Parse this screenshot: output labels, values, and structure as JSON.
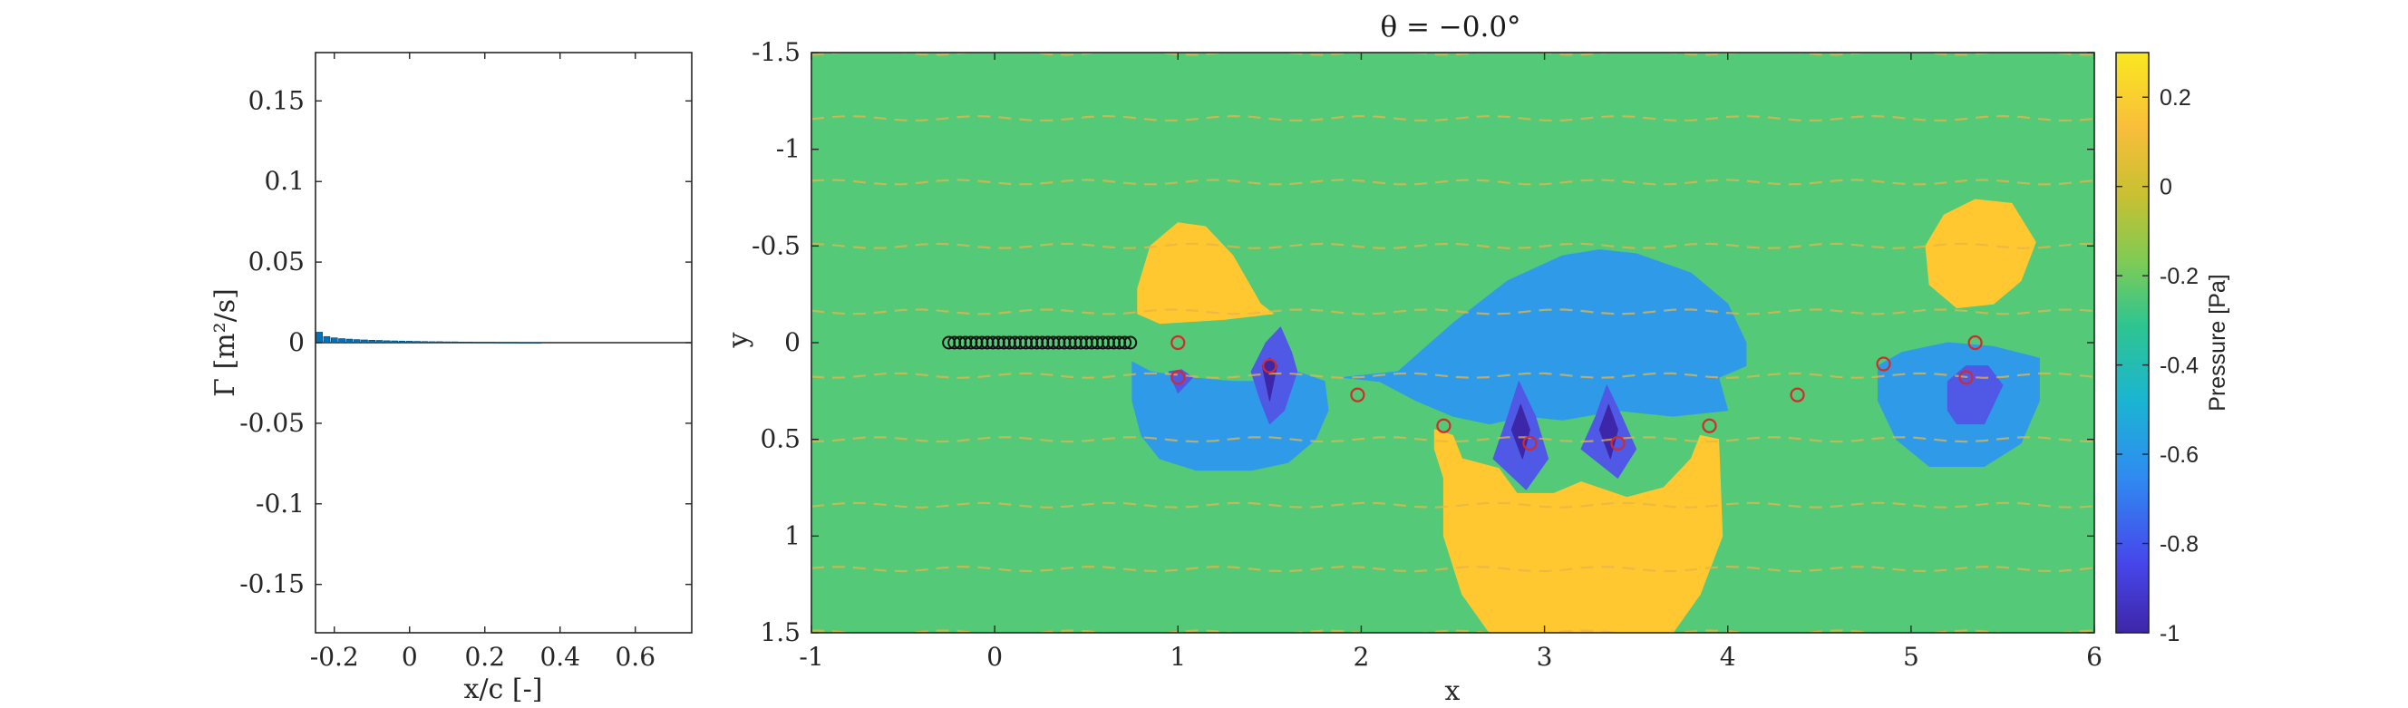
{
  "chart_data": [
    {
      "type": "bar",
      "panel": "circulation",
      "xlabel": "x/c [-]",
      "ylabel": "Γ [m²/s]",
      "xlim": [
        -0.25,
        0.75
      ],
      "ylim": [
        -0.18,
        0.18
      ],
      "xticks": [
        "-0.2",
        "0",
        "0.2",
        "0.4",
        "0.6"
      ],
      "xtick_values": [
        -0.2,
        0,
        0.2,
        0.4,
        0.6
      ],
      "yticks": [
        "0.15",
        "0.1",
        "0.05",
        "0",
        "-0.05",
        "-0.1",
        "-0.15"
      ],
      "ytick_values": [
        0.15,
        0.1,
        0.05,
        0,
        -0.05,
        -0.1,
        -0.15
      ],
      "color": "#0072BD",
      "x": [
        -0.24,
        -0.22,
        -0.2,
        -0.18,
        -0.16,
        -0.14,
        -0.12,
        -0.1,
        -0.08,
        -0.06,
        -0.04,
        -0.02,
        0.0,
        0.02,
        0.04,
        0.06,
        0.08,
        0.1,
        0.12,
        0.14,
        0.16,
        0.18,
        0.2,
        0.22,
        0.24,
        0.26,
        0.28,
        0.3,
        0.32,
        0.34
      ],
      "values": [
        0.0065,
        0.0038,
        0.003,
        0.0025,
        0.0022,
        0.0019,
        0.0017,
        0.0015,
        0.0014,
        0.0012,
        0.0011,
        0.001,
        0.0009,
        0.0008,
        0.0007,
        0.0006,
        0.0006,
        0.0005,
        0.0005,
        0.0004,
        0.0004,
        0.0003,
        0.0003,
        0.0003,
        0.0002,
        0.0002,
        0.0002,
        0.0001,
        0.0001,
        0.0001
      ]
    },
    {
      "type": "heatmap",
      "panel": "pressure-field",
      "title": "θ = −0.0°",
      "xlabel": "x",
      "ylabel": "y",
      "xlim": [
        -1,
        6
      ],
      "ylim": [
        -1.5,
        1.5
      ],
      "y_reversed": true,
      "xticks": [
        "-1",
        "0",
        "1",
        "2",
        "3",
        "4",
        "5",
        "6"
      ],
      "xtick_values": [
        -1,
        0,
        1,
        2,
        3,
        4,
        5,
        6
      ],
      "yticks": [
        "-1.5",
        "-1",
        "-0.5",
        "0",
        "0.5",
        "1",
        "1.5"
      ],
      "ytick_values": [
        -1.5,
        -1,
        -0.5,
        0,
        0.5,
        1,
        1.5
      ],
      "background_color": "#54C977",
      "regions": [
        {
          "level": 0.2,
          "color": "#FFC831",
          "points": [
            [
              0.78,
              -0.28
            ],
            [
              0.85,
              -0.5
            ],
            [
              1.0,
              -0.62
            ],
            [
              1.15,
              -0.6
            ],
            [
              1.3,
              -0.45
            ],
            [
              1.45,
              -0.2
            ],
            [
              1.52,
              -0.15
            ],
            [
              1.25,
              -0.12
            ],
            [
              0.9,
              -0.1
            ],
            [
              0.78,
              -0.15
            ]
          ]
        },
        {
          "level": -0.6,
          "color": "#2F9BE8",
          "points": [
            [
              0.75,
              0.1
            ],
            [
              0.85,
              0.15
            ],
            [
              1.05,
              0.18
            ],
            [
              1.3,
              0.2
            ],
            [
              1.5,
              0.2
            ],
            [
              1.65,
              0.15
            ],
            [
              1.8,
              0.2
            ],
            [
              1.82,
              0.35
            ],
            [
              1.75,
              0.5
            ],
            [
              1.6,
              0.62
            ],
            [
              1.4,
              0.66
            ],
            [
              1.1,
              0.66
            ],
            [
              0.9,
              0.6
            ],
            [
              0.8,
              0.48
            ],
            [
              0.75,
              0.3
            ]
          ]
        },
        {
          "level": -0.6,
          "color": "#2F9BE8",
          "points": [
            [
              1.9,
              0.18
            ],
            [
              2.2,
              0.15
            ],
            [
              2.5,
              -0.1
            ],
            [
              2.8,
              -0.32
            ],
            [
              3.1,
              -0.45
            ],
            [
              3.3,
              -0.48
            ],
            [
              3.5,
              -0.46
            ],
            [
              3.8,
              -0.36
            ],
            [
              4.0,
              -0.2
            ],
            [
              4.1,
              0.0
            ],
            [
              4.1,
              0.12
            ],
            [
              3.95,
              0.18
            ],
            [
              4.0,
              0.35
            ],
            [
              3.7,
              0.38
            ],
            [
              3.4,
              0.35
            ],
            [
              3.1,
              0.4
            ],
            [
              2.9,
              0.38
            ],
            [
              2.7,
              0.42
            ],
            [
              2.5,
              0.38
            ],
            [
              2.3,
              0.3
            ],
            [
              2.1,
              0.2
            ]
          ]
        },
        {
          "level": 0.2,
          "color": "#FFC831",
          "points": [
            [
              2.4,
              0.45
            ],
            [
              2.5,
              0.48
            ],
            [
              2.55,
              0.6
            ],
            [
              2.75,
              0.65
            ],
            [
              2.85,
              0.78
            ],
            [
              3.05,
              0.78
            ],
            [
              3.2,
              0.72
            ],
            [
              3.45,
              0.8
            ],
            [
              3.65,
              0.75
            ],
            [
              3.8,
              0.6
            ],
            [
              3.85,
              0.48
            ],
            [
              3.95,
              0.5
            ],
            [
              3.97,
              1.0
            ],
            [
              3.85,
              1.3
            ],
            [
              3.7,
              1.5
            ],
            [
              2.7,
              1.5
            ],
            [
              2.55,
              1.3
            ],
            [
              2.45,
              1.0
            ],
            [
              2.45,
              0.7
            ],
            [
              2.4,
              0.55
            ]
          ]
        },
        {
          "level": -0.8,
          "color": "#4F59E6",
          "points": [
            [
              2.72,
              0.6
            ],
            [
              2.8,
              0.38
            ],
            [
              2.86,
              0.2
            ],
            [
              2.95,
              0.38
            ],
            [
              3.02,
              0.6
            ],
            [
              2.9,
              0.76
            ]
          ]
        },
        {
          "level": -0.8,
          "color": "#4F59E6",
          "points": [
            [
              3.2,
              0.55
            ],
            [
              3.28,
              0.38
            ],
            [
              3.34,
              0.22
            ],
            [
              3.42,
              0.38
            ],
            [
              3.5,
              0.55
            ],
            [
              3.4,
              0.7
            ]
          ]
        },
        {
          "level": -0.8,
          "color": "#4F59E6",
          "points": [
            [
              1.4,
              0.15
            ],
            [
              1.48,
              0.0
            ],
            [
              1.56,
              -0.08
            ],
            [
              1.62,
              0.05
            ],
            [
              1.65,
              0.15
            ],
            [
              1.58,
              0.35
            ],
            [
              1.5,
              0.42
            ],
            [
              1.45,
              0.3
            ]
          ]
        },
        {
          "level": -0.8,
          "color": "#4F59E6",
          "points": [
            [
              0.95,
              0.15
            ],
            [
              1.02,
              0.14
            ],
            [
              1.08,
              0.18
            ],
            [
              1.0,
              0.26
            ]
          ]
        },
        {
          "level": 0.2,
          "color": "#FFC831",
          "points": [
            [
              5.08,
              -0.5
            ],
            [
              5.18,
              -0.66
            ],
            [
              5.35,
              -0.74
            ],
            [
              5.55,
              -0.72
            ],
            [
              5.68,
              -0.52
            ],
            [
              5.6,
              -0.32
            ],
            [
              5.45,
              -0.2
            ],
            [
              5.25,
              -0.18
            ],
            [
              5.1,
              -0.3
            ]
          ]
        },
        {
          "level": -0.6,
          "color": "#2F9BE8",
          "points": [
            [
              4.82,
              0.12
            ],
            [
              4.95,
              0.05
            ],
            [
              5.2,
              0.0
            ],
            [
              5.45,
              0.02
            ],
            [
              5.7,
              0.08
            ],
            [
              5.7,
              0.3
            ],
            [
              5.6,
              0.52
            ],
            [
              5.4,
              0.64
            ],
            [
              5.1,
              0.64
            ],
            [
              4.92,
              0.5
            ],
            [
              4.82,
              0.3
            ]
          ]
        },
        {
          "level": -0.8,
          "color": "#4F59E6",
          "points": [
            [
              5.2,
              0.2
            ],
            [
              5.3,
              0.12
            ],
            [
              5.42,
              0.12
            ],
            [
              5.5,
              0.22
            ],
            [
              5.45,
              0.32
            ],
            [
              5.4,
              0.42
            ],
            [
              5.25,
              0.42
            ],
            [
              5.2,
              0.35
            ]
          ]
        },
        {
          "level": -1.0,
          "color": "#3E26A8",
          "points": [
            [
              1.46,
              0.12
            ],
            [
              1.5,
              0.08
            ],
            [
              1.54,
              0.12
            ],
            [
              1.5,
              0.3
            ]
          ]
        },
        {
          "level": -1.0,
          "color": "#3E26A8",
          "points": [
            [
              2.82,
              0.45
            ],
            [
              2.87,
              0.32
            ],
            [
              2.92,
              0.45
            ],
            [
              2.88,
              0.6
            ]
          ]
        },
        {
          "level": -1.0,
          "color": "#3E26A8",
          "points": [
            [
              3.3,
              0.45
            ],
            [
              3.35,
              0.32
            ],
            [
              3.4,
              0.45
            ],
            [
              3.36,
              0.6
            ]
          ]
        }
      ],
      "plate_points_x": [
        -0.25,
        -0.22,
        -0.19,
        -0.16,
        -0.13,
        -0.1,
        -0.07,
        -0.04,
        -0.01,
        0.02,
        0.05,
        0.08,
        0.11,
        0.14,
        0.17,
        0.2,
        0.23,
        0.26,
        0.29,
        0.32,
        0.35,
        0.38,
        0.41,
        0.44,
        0.47,
        0.5,
        0.53,
        0.56,
        0.59,
        0.62,
        0.65,
        0.68,
        0.71,
        0.74
      ],
      "plate_points_y": 0,
      "vortices": [
        [
          1.0,
          0.0
        ],
        [
          1.98,
          0.27
        ],
        [
          2.45,
          0.43
        ],
        [
          2.92,
          0.52
        ],
        [
          3.4,
          0.52
        ],
        [
          3.9,
          0.43
        ],
        [
          4.38,
          0.27
        ],
        [
          4.85,
          0.11
        ],
        [
          5.35,
          0.0
        ],
        [
          1.5,
          0.12
        ],
        [
          1.0,
          0.18
        ],
        [
          5.3,
          0.18
        ]
      ],
      "streamline_y": [
        -1.5,
        -1.16,
        -0.83,
        -0.5,
        -0.16,
        0.17,
        0.5,
        0.84,
        1.17,
        1.5
      ]
    }
  ],
  "colorbar": {
    "label": "Pressure [Pa]",
    "min": -1.0,
    "max": 0.3,
    "ticks": [
      "0.2",
      "0",
      "-0.2",
      "-0.4",
      "-0.6",
      "-0.8",
      "-1"
    ],
    "tick_values": [
      0.2,
      0,
      -0.2,
      -0.4,
      -0.6,
      -0.8,
      -1
    ],
    "colormap": [
      "#3E26A8",
      "#4746EB",
      "#2F8CF1",
      "#1BB4D2",
      "#2EC590",
      "#7FCB55",
      "#C6C032",
      "#F9BE3A",
      "#F9E720"
    ]
  }
}
